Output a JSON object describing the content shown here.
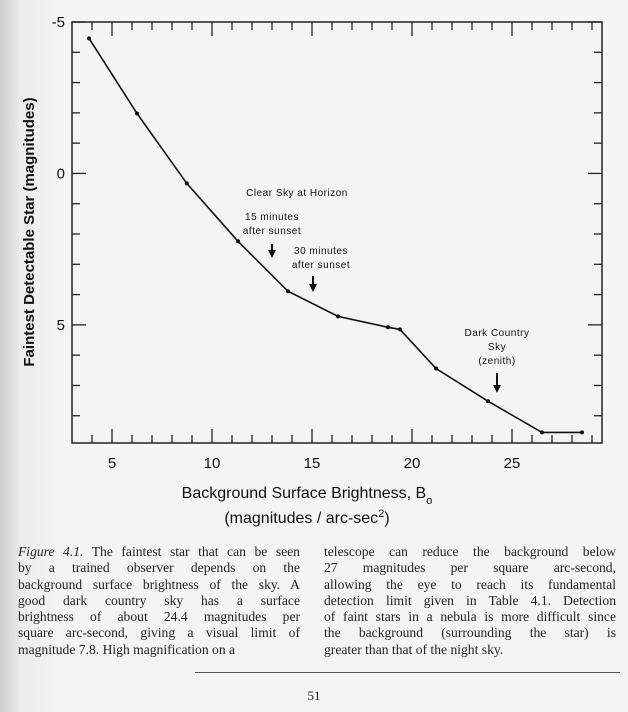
{
  "chart_data": {
    "type": "line",
    "x": [
      3.85,
      6.25,
      8.74,
      11.3,
      13.8,
      16.3,
      18.8,
      19.4,
      21.2,
      23.8,
      26.5,
      28.5
    ],
    "values": [
      -4.46,
      -1.98,
      0.33,
      2.24,
      3.89,
      4.72,
      5.08,
      5.15,
      6.44,
      7.52,
      8.55,
      8.55
    ],
    "color": "#111111",
    "xlim": [
      3,
      29.5
    ],
    "ylim": [
      -5,
      8.9
    ],
    "y_inverted": true,
    "xticks": [
      5,
      10,
      15,
      20,
      25
    ],
    "yticks": [
      -5,
      0,
      5
    ],
    "xminorticks": [
      4,
      6,
      7,
      8,
      9,
      11,
      12,
      13,
      14,
      16,
      17,
      18,
      19,
      21,
      22,
      23,
      24,
      26,
      27,
      28,
      29
    ],
    "yminorticks": [
      -4,
      -3,
      -2,
      -1,
      1,
      2,
      3,
      4,
      6,
      7,
      8
    ],
    "y_label": "Faintest Detectable Star (magnitudes)",
    "x_label": [
      [
        {
          "text": "Background Surface Brightness, B"
        },
        {
          "text": "o",
          "sub": true
        }
      ],
      [
        {
          "text": "(magnitudes / arc-sec"
        },
        {
          "text": "2",
          "sup": true
        },
        {
          "text": ")"
        }
      ]
    ],
    "annotations": [
      {
        "lines": [
          "Clear Sky at Horizon"
        ]
      },
      {
        "lines": [
          "15 minutes",
          "after sunset"
        ]
      },
      {
        "lines": [
          "30 minutes",
          "after sunset"
        ]
      },
      {
        "lines": [
          "Dark Country",
          "Sky",
          "(zenith)"
        ]
      }
    ]
  },
  "caption": {
    "label": "Figure 4.1.",
    "left": [
      " The faintest star that can be seen",
      "by a trained observer depends on the",
      "background surface brightness of the sky. A",
      "good dark country sky has a surface",
      "brightness of about 24.4 magnitudes per",
      "square arc-second, giving a visual limit of",
      "magnitude 7.8. High magnification on a"
    ],
    "right": [
      "telescope can reduce the background below",
      "27 magnitudes per square arc-second,",
      "allowing the eye to reach its fundamental",
      "detection limit given in Table 4.1. Detection",
      "of faint stars in a nebula is more difficult since",
      "the background (surrounding the star) is",
      "greater than that of the night sky."
    ]
  },
  "page_number": "51"
}
